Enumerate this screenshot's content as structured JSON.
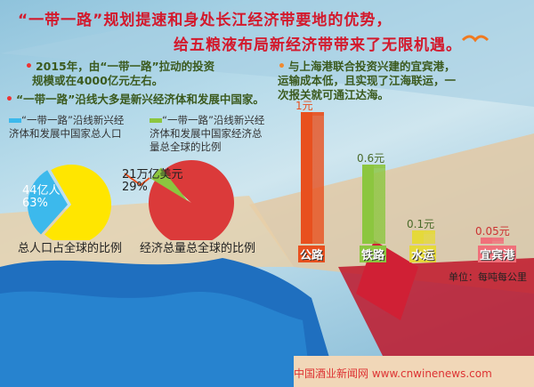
{
  "header": {
    "title_line1": "“一带一路”规划提速和身处长江经济带要地的优势，",
    "title_line2": "给五粮液布局新经济带带来了无限机遇。"
  },
  "notes": {
    "investment": "2015年，由“一带一路”拉动的投资规模或在4000亿元左右。",
    "port": "与上海港联合投资兴建的宜宾港，运输成本低，且实现了江海联运，一次报关就可通江达海。",
    "countries": "“一带一路”沿线大多是新兴经济体和发展中国家。"
  },
  "chart_data": [
    {
      "type": "pie",
      "legend": "“一带一路”沿线新兴经济体和发展中国家总人口",
      "caption": "总人口占全球的比例",
      "slice_label": "44亿人",
      "slice_percent": "63%",
      "colors": {
        "slice": "#3cb9ec",
        "rest": "#ffe600"
      }
    },
    {
      "type": "pie",
      "legend": "“一带一路”沿线新兴经济体和发展中国家经济总量总全球的比例",
      "caption": "经济总量总全球的比例",
      "slice_label": "21万亿美元",
      "slice_percent": "29%",
      "colors": {
        "slice": "#8cc63f",
        "rest": "#db3a3a"
      }
    },
    {
      "type": "bar",
      "categories": [
        "公路",
        "铁路",
        "水运",
        "宜宾港"
      ],
      "values": [
        1,
        0.6,
        0.1,
        0.05
      ],
      "value_labels": [
        "1元",
        "0.6元",
        "0.1元",
        "0.05元"
      ],
      "colors": [
        "#e8501e",
        "#8cc63f",
        "#e5d93a",
        "#f0707a"
      ],
      "unit": "单位：每吨每公里"
    }
  ],
  "footer": {
    "watermark": "中国酒业新闻网 www.cnwinenews.com"
  }
}
